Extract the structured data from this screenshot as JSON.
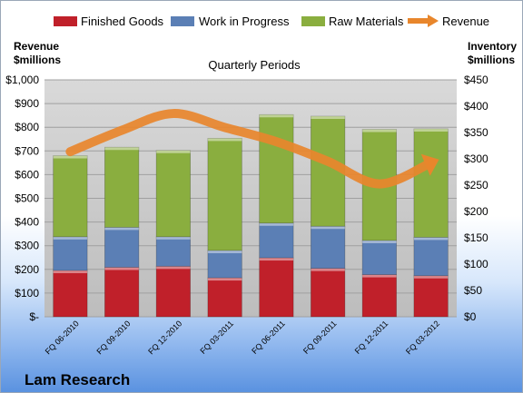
{
  "chart_data": {
    "type": "bar",
    "stacked": true,
    "title": "Quarterly Periods",
    "categories": [
      "FQ 06-2010",
      "FQ 09-2010",
      "FQ 12-2010",
      "FQ 03-2011",
      "FQ 06-2011",
      "FQ 09-2011",
      "FQ 12-2011",
      "FQ 03-2012"
    ],
    "series": [
      {
        "name": "Finished Goods",
        "axis": "right",
        "color": "#c0202a",
        "values": [
          88,
          94,
          96,
          74,
          112,
          92,
          80,
          78
        ]
      },
      {
        "name": "Work in Progress",
        "axis": "right",
        "color": "#5b7fb5",
        "values": [
          64,
          76,
          56,
          52,
          66,
          80,
          65,
          73
        ]
      },
      {
        "name": "Raw Materials",
        "axis": "right",
        "color": "#8aae3f",
        "values": [
          154,
          152,
          164,
          213,
          206,
          209,
          211,
          206
        ]
      },
      {
        "name": "Revenue",
        "axis": "left",
        "type": "line",
        "color": "#e8862c",
        "values": [
          697,
          787,
          858,
          799,
          739,
          656,
          561,
          650
        ]
      }
    ],
    "left_axis": {
      "label": "Revenue\n$millions",
      "min": 0,
      "max": 1000,
      "step": 100,
      "ticks": [
        "$-",
        "$100",
        "$200",
        "$300",
        "$400",
        "$500",
        "$600",
        "$700",
        "$800",
        "$900",
        "$1,000"
      ]
    },
    "right_axis": {
      "label": "Inventory\n$millions",
      "min": 0,
      "max": 450,
      "step": 50,
      "ticks": [
        "$0",
        "$50",
        "$100",
        "$150",
        "$200",
        "$250",
        "$300",
        "$350",
        "$400",
        "$450"
      ]
    },
    "legend_position": "top",
    "grid": true
  },
  "legend": {
    "finished_goods": "Finished Goods",
    "work_in_progress": "Work in Progress",
    "raw_materials": "Raw Materials",
    "revenue": "Revenue"
  },
  "left_axis_title_line1": "Revenue",
  "left_axis_title_line2": "$millions",
  "right_axis_title_line1": "Inventory",
  "right_axis_title_line2": "$millions",
  "company": "Lam Research",
  "colors": {
    "plot_bg": "#c8c8c8",
    "grid": "#a0a0a0"
  }
}
